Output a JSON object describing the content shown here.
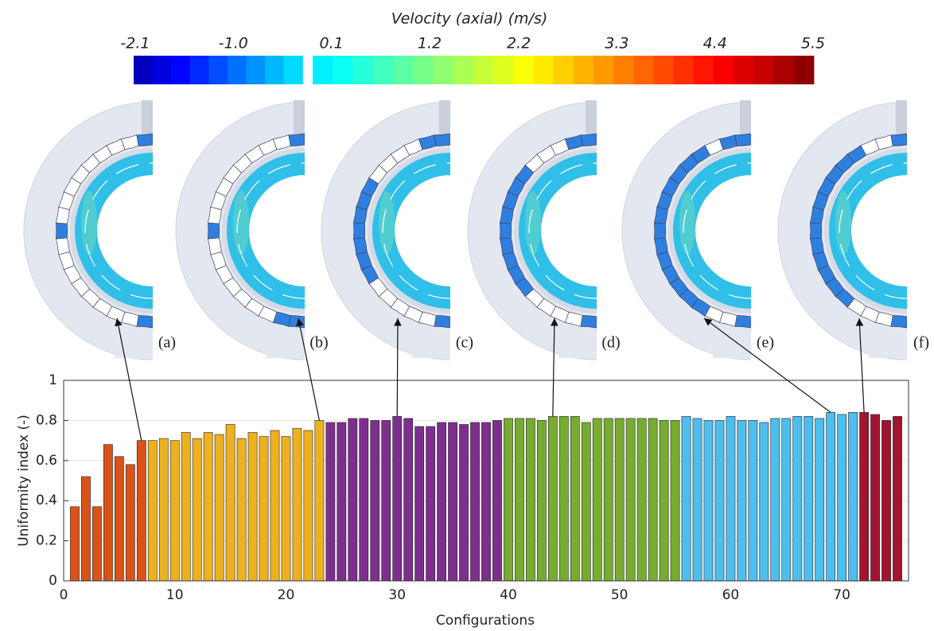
{
  "colorbar": {
    "title": "Velocity (axial) (m/s)",
    "ticks": [
      -2.1,
      {
        "value": -1,
        "label": "-1.0"
      },
      0.1,
      1.2,
      2.2,
      3.3,
      4.4,
      5.5
    ]
  },
  "panel_labels": [
    "(a)",
    "(b)",
    "(c)",
    "(d)",
    "(e)",
    "(f)"
  ],
  "chart_data": {
    "type": "bar",
    "x_label": "Configurations",
    "y_label": "Uniformity index (-)",
    "xlim": [
      0,
      76
    ],
    "ylim": [
      0,
      1
    ],
    "xticks": [
      0,
      10,
      20,
      30,
      40,
      50,
      60,
      70
    ],
    "yticks": [
      0,
      0.2,
      0.4,
      0.6,
      0.8,
      1
    ],
    "grid": true,
    "series": [
      {
        "color": "#d95319",
        "x": [
          1,
          2,
          3,
          4,
          5,
          6,
          7
        ],
        "values": [
          0.37,
          0.52,
          0.37,
          0.68,
          0.62,
          0.58,
          0.7
        ]
      },
      {
        "color": "#edb120",
        "x": [
          8,
          9,
          10,
          11,
          12,
          13,
          14,
          15,
          16,
          17,
          18,
          19,
          20,
          21,
          22,
          23
        ],
        "values": [
          0.7,
          0.71,
          0.7,
          0.74,
          0.71,
          0.74,
          0.73,
          0.78,
          0.71,
          0.74,
          0.72,
          0.75,
          0.72,
          0.76,
          0.75,
          0.8
        ]
      },
      {
        "color": "#7e2f8e",
        "x": [
          24,
          25,
          26,
          27,
          28,
          29,
          30,
          31,
          32,
          33,
          34,
          35,
          36,
          37,
          38,
          39
        ],
        "values": [
          0.79,
          0.79,
          0.81,
          0.81,
          0.8,
          0.8,
          0.82,
          0.81,
          0.77,
          0.77,
          0.79,
          0.79,
          0.78,
          0.79,
          0.79,
          0.8
        ]
      },
      {
        "color": "#77ac30",
        "x": [
          40,
          41,
          42,
          43,
          44,
          45,
          46,
          47,
          48,
          49,
          50,
          51,
          52,
          53,
          54,
          55
        ],
        "values": [
          0.81,
          0.81,
          0.81,
          0.8,
          0.82,
          0.82,
          0.82,
          0.79,
          0.81,
          0.81,
          0.81,
          0.81,
          0.81,
          0.81,
          0.8,
          0.8
        ]
      },
      {
        "color": "#4dbeee",
        "x": [
          56,
          57,
          58,
          59,
          60,
          61,
          62,
          63,
          64,
          65,
          66,
          67,
          68,
          69,
          70,
          71
        ],
        "values": [
          0.82,
          0.81,
          0.8,
          0.8,
          0.82,
          0.8,
          0.8,
          0.79,
          0.81,
          0.81,
          0.82,
          0.82,
          0.81,
          0.84,
          0.83,
          0.84
        ]
      },
      {
        "color": "#a2142f",
        "x": [
          72,
          73,
          74,
          75
        ],
        "values": [
          0.84,
          0.83,
          0.8,
          0.82
        ]
      }
    ]
  }
}
